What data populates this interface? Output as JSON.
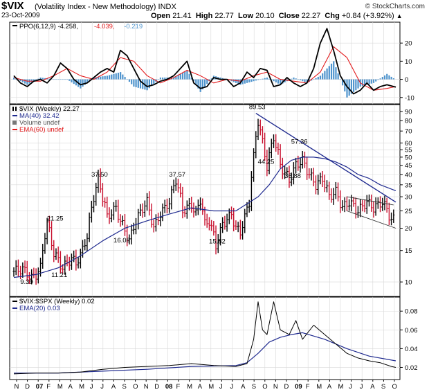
{
  "header": {
    "symbol": "$VIX",
    "description": "(Volatility Index - New Methodology)",
    "exchange": "INDX",
    "brand": "© StockCharts.com",
    "date": "23-Oct-2009",
    "open_label": "Open",
    "open": "21.41",
    "high_label": "High",
    "high": "22.77",
    "low_label": "Low",
    "low": "20.10",
    "close_label": "Close",
    "close": "22.27",
    "chg_label": "Chg",
    "chg": "+0.84 (+3.92%)",
    "chg_arrow": "▲"
  },
  "colors": {
    "ppo_line": "#000000",
    "ppo_signal": "#e31a1c",
    "ppo_hist": "#4f94cd",
    "up_bar": "#000000",
    "down_bar": "#c8102e",
    "ma40": "#1f2a8f",
    "ema60": "#e31a1c",
    "ratio_line": "#000000",
    "ratio_ema": "#1f2a8f",
    "trendline": "#1f2a8f",
    "grid": "#d8d8d8"
  },
  "chart_data": [
    {
      "type": "line",
      "panel": "ppo",
      "legend": [
        {
          "text": "PPO(6,12,9) -4.258, ",
          "color": "#000000"
        },
        {
          "text": "-4.039, ",
          "color": "#e31a1c"
        },
        {
          "text": "-0.219",
          "color": "#4f94cd"
        }
      ],
      "ylim": [
        -12,
        30
      ],
      "yticks": [
        "20",
        "10",
        "0",
        "-10"
      ],
      "ytick_values": [
        20,
        10,
        0,
        -10
      ],
      "series": [
        {
          "name": "PPO",
          "x": [
            0,
            3,
            6,
            9,
            12,
            15,
            18,
            21,
            24,
            27,
            30,
            33,
            36,
            39,
            42,
            45,
            48,
            51,
            54,
            57,
            60,
            63,
            66,
            69,
            72,
            75,
            78,
            81,
            84,
            87,
            90,
            93,
            96,
            99,
            102,
            105,
            108,
            111,
            114,
            117,
            120,
            123,
            126,
            129,
            132,
            135,
            138,
            141,
            144,
            147,
            150,
            153,
            156,
            159,
            162,
            165,
            168,
            172
          ],
          "values": [
            2,
            -2,
            -4,
            -1,
            0,
            -2,
            2,
            9,
            6,
            0,
            -3,
            -2,
            1,
            4,
            6,
            4,
            16,
            13,
            6,
            -1,
            -4,
            -3,
            -1,
            0,
            2,
            6,
            10,
            -2,
            -5,
            -4,
            1,
            0,
            0,
            -4,
            -2,
            4,
            1,
            6,
            5,
            -4,
            -3,
            1,
            -2,
            -4,
            -2,
            6,
            20,
            28,
            16,
            2,
            -4,
            -8,
            -6,
            -2,
            -6,
            -4,
            -3,
            -4.3
          ]
        },
        {
          "name": "Signal",
          "x": [
            0,
            6,
            12,
            18,
            24,
            30,
            36,
            42,
            48,
            54,
            60,
            66,
            72,
            78,
            84,
            90,
            96,
            102,
            108,
            114,
            120,
            126,
            132,
            138,
            144,
            150,
            156,
            162,
            168,
            172
          ],
          "values": [
            1,
            -1,
            -1,
            2,
            6,
            2,
            0,
            4,
            12,
            10,
            2,
            -2,
            1,
            5,
            2,
            -2,
            0,
            -1,
            2,
            4,
            0,
            -1,
            -2,
            4,
            18,
            12,
            -2,
            -6,
            -5,
            -4.0
          ]
        },
        {
          "name": "Histogram",
          "type": "bar",
          "x": [
            0,
            6,
            12,
            18,
            24,
            30,
            36,
            42,
            48,
            54,
            60,
            66,
            72,
            78,
            84,
            90,
            96,
            102,
            108,
            114,
            120,
            126,
            132,
            138,
            144,
            150,
            156,
            162,
            168,
            172
          ],
          "values": [
            1,
            -3,
            1,
            0,
            0,
            -5,
            1,
            2,
            4,
            -4,
            -6,
            1,
            1,
            5,
            -7,
            2,
            0,
            -3,
            -1,
            1,
            -3,
            1,
            -2,
            2,
            10,
            -10,
            -4,
            -2,
            3,
            -0.2
          ]
        }
      ]
    },
    {
      "type": "line",
      "panel": "price",
      "scale": "log",
      "x_unit": "weeks since first bar",
      "legend": [
        {
          "text": "$VIX (Weekly) 22.27",
          "color": "#000000",
          "marker": "bars"
        },
        {
          "text": "MA(40) 32.42",
          "color": "#1f2a8f"
        },
        {
          "text": "Volume undef",
          "color": "#555555"
        },
        {
          "text": "EMA(60) undef",
          "color": "#e31a1c"
        }
      ],
      "ylim": [
        8.6,
        95
      ],
      "yticks": [
        "90",
        "80",
        "70",
        "60",
        "55",
        "50",
        "45",
        "40",
        "35",
        "30",
        "25",
        "20",
        "15",
        "10"
      ],
      "ytick_values": [
        90,
        80,
        70,
        60,
        55,
        50,
        45,
        40,
        35,
        30,
        25,
        20,
        15,
        10
      ],
      "xaxis_labels": [
        "N",
        "D",
        "07",
        "F",
        "M",
        "A",
        "M",
        "J",
        "J",
        "A",
        "S",
        "O",
        "N",
        "D",
        "08",
        "F",
        "M",
        "A",
        "M",
        "J",
        "J",
        "A",
        "S",
        "O",
        "N",
        "D",
        "09",
        "F",
        "M",
        "A",
        "M",
        "J",
        "J",
        "A",
        "S",
        "O"
      ],
      "xaxis_bold": [
        "07",
        "08",
        "09"
      ],
      "series": [
        {
          "name": "$VIX close",
          "x": [
            0,
            4,
            8,
            10,
            12,
            15,
            18,
            22,
            26,
            28,
            30,
            33,
            36,
            38,
            42,
            46,
            48,
            52,
            55,
            58,
            60,
            63,
            66,
            70,
            73,
            76,
            80,
            82,
            84,
            86,
            88,
            91,
            94,
            98,
            100,
            102,
            104,
            106,
            108,
            110,
            112,
            114,
            117,
            120,
            124,
            127,
            130,
            133,
            136,
            139,
            142,
            145,
            148,
            151,
            155,
            159,
            162,
            166,
            170,
            172
          ],
          "values": [
            11.5,
            11.8,
            10.5,
            11,
            12,
            21.25,
            14.5,
            12,
            13.5,
            12.8,
            14,
            18,
            30,
            37.5,
            23,
            26,
            22,
            17,
            22,
            26,
            28,
            20,
            24,
            28,
            37.57,
            25,
            27,
            24,
            29,
            21,
            22,
            16,
            21,
            24,
            20,
            19,
            23,
            28,
            50,
            80,
            60,
            44.25,
            65,
            45,
            36.88,
            45,
            48,
            40,
            35,
            38,
            30,
            32,
            26,
            28,
            25,
            28,
            26,
            28,
            22.5,
            22.27
          ]
        },
        {
          "name": "MA(40)",
          "x": [
            0,
            10,
            20,
            30,
            40,
            50,
            60,
            70,
            80,
            90,
            100,
            110,
            115,
            120,
            125,
            130,
            135,
            140,
            145,
            150,
            155,
            160,
            165,
            172
          ],
          "values": [
            10.6,
            11,
            12,
            14,
            17,
            20,
            22,
            24,
            26,
            25,
            25,
            30,
            35,
            43,
            48,
            50,
            50,
            49,
            47,
            44,
            40,
            38,
            35,
            32.42
          ]
        },
        {
          "name": "Ratio $VIX:$SPX",
          "panel": "ratio",
          "x": [
            0,
            10,
            20,
            30,
            40,
            50,
            60,
            70,
            80,
            90,
            100,
            105,
            108,
            110,
            112,
            114,
            117,
            120,
            124,
            127,
            130,
            135,
            140,
            145,
            150,
            155,
            160,
            165,
            170,
            172
          ],
          "values": [
            0.013,
            0.014,
            0.014,
            0.015,
            0.018,
            0.02,
            0.021,
            0.022,
            0.024,
            0.022,
            0.021,
            0.024,
            0.05,
            0.09,
            0.06,
            0.055,
            0.09,
            0.06,
            0.055,
            0.07,
            0.05,
            0.065,
            0.055,
            0.045,
            0.035,
            0.03,
            0.027,
            0.025,
            0.021,
            0.02
          ]
        },
        {
          "name": "EMA(20)",
          "panel": "ratio",
          "x": [
            0,
            20,
            40,
            60,
            80,
            100,
            105,
            110,
            115,
            120,
            125,
            130,
            140,
            150,
            160,
            172
          ],
          "values": [
            0.014,
            0.014,
            0.016,
            0.018,
            0.021,
            0.022,
            0.025,
            0.035,
            0.047,
            0.052,
            0.055,
            0.057,
            0.05,
            0.04,
            0.032,
            0.027
          ]
        }
      ],
      "annotations": [
        {
          "text": "9.39",
          "x": 6,
          "y": 9.39
        },
        {
          "text": "11.21",
          "x": 20,
          "y": 10.3
        },
        {
          "text": "21.25",
          "x": 18,
          "y": 21.25
        },
        {
          "text": "37.50",
          "x": 38,
          "y": 37.5
        },
        {
          "text": "16.08",
          "x": 48,
          "y": 16.08
        },
        {
          "text": "37.57",
          "x": 73,
          "y": 37.57
        },
        {
          "text": "15.82",
          "x": 91,
          "y": 15.82
        },
        {
          "text": "89.53",
          "x": 109,
          "y": 89.53
        },
        {
          "text": "44.25",
          "x": 113,
          "y": 44.25
        },
        {
          "text": "57.36",
          "x": 128,
          "y": 57.36
        },
        {
          "text": "36.88",
          "x": 125,
          "y": 36.88
        }
      ]
    },
    {
      "type": "line",
      "panel": "ratio",
      "legend": [
        {
          "text": "$VIX:$SPX (Weekly) 0.02",
          "color": "#000000"
        },
        {
          "text": "EMA(20) 0.03",
          "color": "#1f2a8f"
        }
      ],
      "ylim": [
        0.01,
        0.092
      ],
      "yticks": [
        "0.08",
        "0.06",
        "0.04",
        "0.02"
      ],
      "ytick_values": [
        0.08,
        0.06,
        0.04,
        0.02
      ]
    }
  ]
}
